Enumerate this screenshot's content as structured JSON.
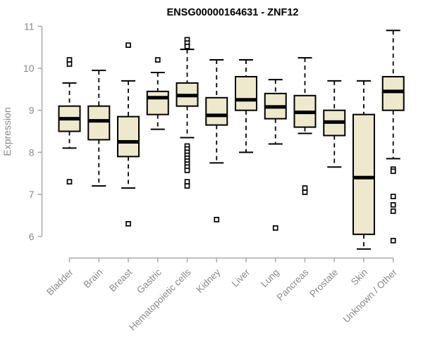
{
  "chart_data": {
    "type": "boxplot",
    "title": "ENSG00000164631 - ZNF12",
    "ylabel": "Expression",
    "xlabel": "",
    "ylim": [
      6,
      11
    ],
    "yticks": [
      6,
      7,
      8,
      9,
      10,
      11
    ],
    "grid": false,
    "legend": "none",
    "categories": [
      "Bladder",
      "Brain",
      "Breast",
      "Gastric",
      "Hematopoietic cells",
      "Kidney",
      "Liver",
      "Lung",
      "Pancreas",
      "Prostate",
      "Skin",
      "Unknown / Other"
    ],
    "boxes": [
      {
        "category": "Bladder",
        "whisker_low": 8.1,
        "q1": 8.5,
        "median": 8.8,
        "q3": 9.1,
        "whisker_high": 9.65,
        "outliers": [
          10.2,
          10.1,
          7.3
        ]
      },
      {
        "category": "Brain",
        "whisker_low": 7.2,
        "q1": 8.3,
        "median": 8.75,
        "q3": 9.1,
        "whisker_high": 9.95,
        "outliers": []
      },
      {
        "category": "Breast",
        "whisker_low": 7.15,
        "q1": 7.9,
        "median": 8.25,
        "q3": 8.85,
        "whisker_high": 9.7,
        "outliers": [
          10.55,
          6.3
        ]
      },
      {
        "category": "Gastric",
        "whisker_low": 8.55,
        "q1": 8.9,
        "median": 9.3,
        "q3": 9.45,
        "whisker_high": 9.9,
        "outliers": [
          10.2
        ]
      },
      {
        "category": "Hematopoietic cells",
        "whisker_low": 8.35,
        "q1": 9.1,
        "median": 9.35,
        "q3": 9.65,
        "whisker_high": 10.45,
        "outliers": [
          10.68,
          10.6,
          10.52,
          8.15,
          8.08,
          8.0,
          7.93,
          7.86,
          7.79,
          7.72,
          7.65,
          7.57,
          7.3,
          7.2
        ]
      },
      {
        "category": "Kidney",
        "whisker_low": 7.75,
        "q1": 8.65,
        "median": 8.88,
        "q3": 9.3,
        "whisker_high": 10.2,
        "outliers": [
          6.4
        ]
      },
      {
        "category": "Liver",
        "whisker_low": 8.0,
        "q1": 9.0,
        "median": 9.25,
        "q3": 9.8,
        "whisker_high": 10.2,
        "outliers": []
      },
      {
        "category": "Lung",
        "whisker_low": 8.2,
        "q1": 8.8,
        "median": 9.08,
        "q3": 9.4,
        "whisker_high": 9.73,
        "outliers": [
          6.2
        ]
      },
      {
        "category": "Pancreas",
        "whisker_low": 8.45,
        "q1": 8.6,
        "median": 8.95,
        "q3": 9.35,
        "whisker_high": 10.25,
        "outliers": [
          7.15,
          7.05
        ]
      },
      {
        "category": "Prostate",
        "whisker_low": 7.65,
        "q1": 8.4,
        "median": 8.72,
        "q3": 9.0,
        "whisker_high": 9.7,
        "outliers": []
      },
      {
        "category": "Skin",
        "whisker_low": 5.7,
        "q1": 6.05,
        "median": 7.4,
        "q3": 8.9,
        "whisker_high": 9.7,
        "outliers": []
      },
      {
        "category": "Unknown / Other",
        "whisker_low": 7.85,
        "q1": 9.0,
        "median": 9.45,
        "q3": 9.8,
        "whisker_high": 10.9,
        "outliers": [
          7.6,
          7.55,
          6.95,
          6.75,
          6.6,
          5.9
        ]
      }
    ]
  },
  "colors": {
    "box_fill": "#EEE8CD",
    "box_border": "#000000",
    "median": "#000000",
    "whisker": "#000000",
    "outlier_fill": "#ffffff",
    "axis_line": "#a8a8a8",
    "axis_text": "#8a8a8a",
    "title": "#000000",
    "background": "#ffffff"
  }
}
